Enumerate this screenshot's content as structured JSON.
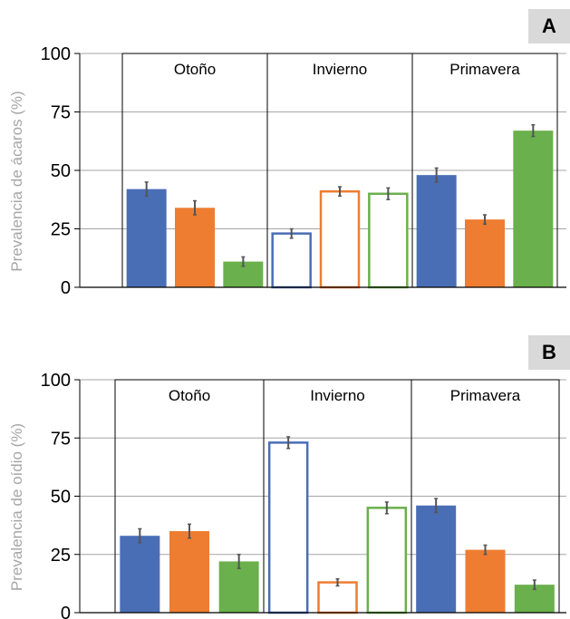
{
  "chart_data": [
    {
      "type": "bar",
      "panel_label": "A",
      "ylabel": "Prevalencia de ácaros (%)",
      "ylim": [
        0,
        100
      ],
      "yticks": [
        "0",
        "25",
        "50",
        "75",
        "100"
      ],
      "grid": true,
      "seasons": [
        {
          "name": "Otoño",
          "style": "filled",
          "values": [
            42,
            34,
            11
          ],
          "errors": [
            3,
            3,
            2
          ]
        },
        {
          "name": "Invierno",
          "style": "outline",
          "values": [
            23,
            41,
            40
          ],
          "errors": [
            2,
            2,
            2.5
          ]
        },
        {
          "name": "Primavera",
          "style": "filled",
          "values": [
            48,
            29,
            67
          ],
          "errors": [
            3,
            2,
            2.5
          ]
        }
      ]
    },
    {
      "type": "bar",
      "panel_label": "B",
      "ylabel": "Prevalencia de oídio (%)",
      "ylim": [
        0,
        100
      ],
      "yticks": [
        "0",
        "25",
        "50",
        "75",
        "100"
      ],
      "grid": true,
      "seasons": [
        {
          "name": "Otoño",
          "style": "filled",
          "values": [
            33,
            35,
            22
          ],
          "errors": [
            3,
            3,
            3
          ]
        },
        {
          "name": "Invierno",
          "style": "outline",
          "values": [
            73,
            13,
            45
          ],
          "errors": [
            2.5,
            1.5,
            2.5
          ]
        },
        {
          "name": "Primavera",
          "style": "filled",
          "values": [
            46,
            27,
            12
          ],
          "errors": [
            3,
            2,
            2
          ]
        }
      ]
    }
  ],
  "colors": {
    "series": [
      "#4a6eb5",
      "#ee7d31",
      "#6ab04c"
    ],
    "grid": "#a6a6a6",
    "error": "#555555",
    "ylabel": "#a6a6a6",
    "badge": "#d9d9d9"
  }
}
